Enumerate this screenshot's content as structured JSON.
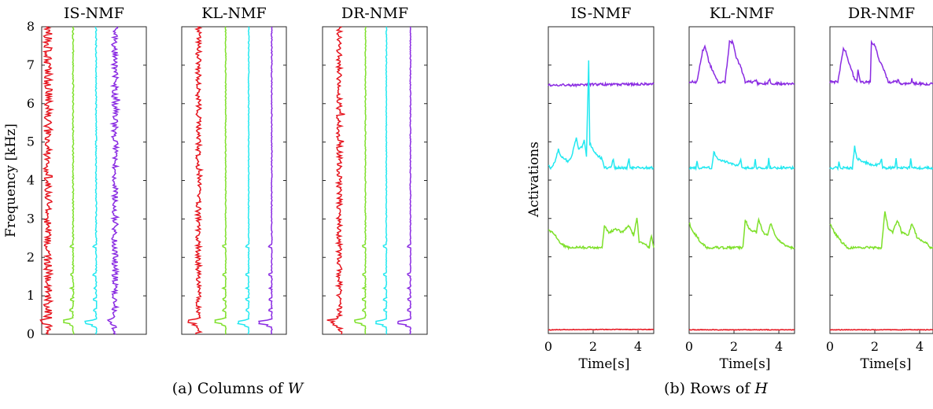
{
  "figure": {
    "caption_a": "(a) Columns of ",
    "caption_a_sym": "W",
    "caption_b": "(b) Rows of ",
    "caption_b_sym": "H"
  },
  "chart_data": [
    {
      "type": "line",
      "panel": "a",
      "title": "IS-NMF",
      "ylabel": "Frequency [kHz]",
      "ylim": [
        0,
        8
      ],
      "yticks": [
        0,
        1,
        2,
        3,
        4,
        5,
        6,
        7,
        8
      ],
      "series": [
        {
          "color": "#e6141e",
          "baseline": 0.06,
          "spike_at_khz": 0.33,
          "spike": 0.05,
          "noise": 0.04
        },
        {
          "color": "#7ee02a",
          "baseline": 0.3,
          "spike_at_khz": 0.33,
          "spike": 0.09,
          "noise": 0.006
        },
        {
          "color": "#22e8f0",
          "baseline": 0.52,
          "spike_at_khz": 0.3,
          "spike": 0.1,
          "noise": 0.006
        },
        {
          "color": "#8a2be2",
          "baseline": 0.7,
          "spike_at_khz": 0.33,
          "spike": 0.05,
          "noise": 0.03
        }
      ]
    },
    {
      "type": "line",
      "panel": "a",
      "title": "KL-NMF",
      "ylim": [
        0,
        8
      ],
      "series": [
        {
          "color": "#e6141e",
          "baseline": 0.16,
          "spike_at_khz": 0.33,
          "spike": 0.1,
          "noise": 0.025
        },
        {
          "color": "#7ee02a",
          "baseline": 0.42,
          "spike_at_khz": 0.33,
          "spike": 0.1,
          "noise": 0.004
        },
        {
          "color": "#22e8f0",
          "baseline": 0.64,
          "spike_at_khz": 0.3,
          "spike": 0.1,
          "noise": 0.004
        },
        {
          "color": "#8a2be2",
          "baseline": 0.86,
          "spike_at_khz": 0.3,
          "spike": 0.12,
          "noise": 0.004
        }
      ]
    },
    {
      "type": "line",
      "panel": "a",
      "title": "DR-NMF",
      "ylim": [
        0,
        8
      ],
      "series": [
        {
          "color": "#e6141e",
          "baseline": 0.16,
          "spike_at_khz": 0.33,
          "spike": 0.1,
          "noise": 0.025
        },
        {
          "color": "#7ee02a",
          "baseline": 0.41,
          "spike_at_khz": 0.33,
          "spike": 0.1,
          "noise": 0.004
        },
        {
          "color": "#22e8f0",
          "baseline": 0.61,
          "spike_at_khz": 0.3,
          "spike": 0.1,
          "noise": 0.004
        },
        {
          "color": "#8a2be2",
          "baseline": 0.84,
          "spike_at_khz": 0.3,
          "spike": 0.12,
          "noise": 0.004
        }
      ]
    },
    {
      "type": "line",
      "panel": "b",
      "title": "IS-NMF",
      "xlabel": "Time[s]",
      "ylabel": "Activations",
      "xlim": [
        0,
        4.7
      ],
      "xticks": [
        0,
        2,
        4
      ],
      "series": [
        {
          "color": "#8a2be2",
          "points": [
            [
              0,
              0.81
            ],
            [
              1.0,
              0.81
            ],
            [
              1.8,
              0.81
            ],
            [
              1.82,
              0.812
            ],
            [
              3.0,
              0.812
            ],
            [
              4.7,
              0.813
            ]
          ]
        },
        {
          "color": "#22e8f0",
          "points": [
            [
              0,
              0.55
            ],
            [
              0.1,
              0.54
            ],
            [
              0.3,
              0.56
            ],
            [
              0.45,
              0.6
            ],
            [
              0.55,
              0.58
            ],
            [
              0.7,
              0.57
            ],
            [
              0.9,
              0.56
            ],
            [
              1.05,
              0.58
            ],
            [
              1.25,
              0.64
            ],
            [
              1.35,
              0.6
            ],
            [
              1.5,
              0.61
            ],
            [
              1.6,
              0.63
            ],
            [
              1.7,
              0.58
            ],
            [
              1.8,
              0.89
            ],
            [
              1.85,
              0.62
            ],
            [
              2.0,
              0.6
            ],
            [
              2.2,
              0.58
            ],
            [
              2.4,
              0.57
            ],
            [
              2.5,
              0.54
            ],
            [
              2.8,
              0.54
            ],
            [
              2.9,
              0.57
            ],
            [
              2.95,
              0.54
            ],
            [
              3.5,
              0.54
            ],
            [
              3.6,
              0.57
            ],
            [
              3.65,
              0.54
            ],
            [
              4.7,
              0.54
            ]
          ]
        },
        {
          "color": "#7ee02a",
          "points": [
            [
              0,
              0.34
            ],
            [
              0.15,
              0.33
            ],
            [
              0.3,
              0.32
            ],
            [
              0.6,
              0.29
            ],
            [
              0.9,
              0.28
            ],
            [
              1.2,
              0.28
            ],
            [
              2.4,
              0.28
            ],
            [
              2.5,
              0.35
            ],
            [
              2.7,
              0.33
            ],
            [
              3.0,
              0.34
            ],
            [
              3.3,
              0.33
            ],
            [
              3.6,
              0.35
            ],
            [
              3.8,
              0.32
            ],
            [
              3.95,
              0.38
            ],
            [
              4.05,
              0.3
            ],
            [
              4.3,
              0.29
            ],
            [
              4.5,
              0.28
            ],
            [
              4.6,
              0.32
            ],
            [
              4.7,
              0.28
            ]
          ]
        },
        {
          "color": "#e6141e",
          "points": [
            [
              0,
              0.012
            ],
            [
              2.0,
              0.013
            ],
            [
              4.7,
              0.013
            ]
          ]
        }
      ]
    },
    {
      "type": "line",
      "panel": "b",
      "title": "KL-NMF",
      "xlabel": "Time[s]",
      "xlim": [
        0,
        4.7
      ],
      "xticks": [
        0,
        2,
        4
      ],
      "series": [
        {
          "color": "#8a2be2",
          "points": [
            [
              0,
              0.82
            ],
            [
              0.35,
              0.82
            ],
            [
              0.6,
              0.92
            ],
            [
              0.7,
              0.94
            ],
            [
              0.9,
              0.88
            ],
            [
              1.1,
              0.85
            ],
            [
              1.3,
              0.82
            ],
            [
              1.6,
              0.82
            ],
            [
              1.8,
              0.95
            ],
            [
              1.95,
              0.95
            ],
            [
              2.1,
              0.9
            ],
            [
              2.3,
              0.87
            ],
            [
              2.5,
              0.82
            ],
            [
              2.9,
              0.82
            ],
            [
              3.0,
              0.83
            ],
            [
              3.05,
              0.815
            ],
            [
              3.5,
              0.815
            ],
            [
              3.6,
              0.83
            ],
            [
              3.65,
              0.815
            ],
            [
              4.7,
              0.813
            ]
          ]
        },
        {
          "color": "#22e8f0",
          "points": [
            [
              0,
              0.54
            ],
            [
              0.3,
              0.54
            ],
            [
              0.35,
              0.56
            ],
            [
              0.4,
              0.54
            ],
            [
              1.0,
              0.54
            ],
            [
              1.1,
              0.59
            ],
            [
              1.3,
              0.57
            ],
            [
              1.6,
              0.56
            ],
            [
              2.0,
              0.55
            ],
            [
              2.2,
              0.55
            ],
            [
              2.3,
              0.57
            ],
            [
              2.35,
              0.54
            ],
            [
              2.9,
              0.54
            ],
            [
              2.95,
              0.57
            ],
            [
              3.0,
              0.54
            ],
            [
              3.5,
              0.54
            ],
            [
              3.55,
              0.57
            ],
            [
              3.6,
              0.54
            ],
            [
              4.7,
              0.54
            ]
          ]
        },
        {
          "color": "#7ee02a",
          "points": [
            [
              0,
              0.36
            ],
            [
              0.2,
              0.33
            ],
            [
              0.5,
              0.3
            ],
            [
              0.8,
              0.28
            ],
            [
              1.2,
              0.28
            ],
            [
              2.4,
              0.28
            ],
            [
              2.5,
              0.37
            ],
            [
              2.7,
              0.34
            ],
            [
              3.0,
              0.33
            ],
            [
              3.1,
              0.37
            ],
            [
              3.3,
              0.33
            ],
            [
              3.5,
              0.32
            ],
            [
              3.65,
              0.36
            ],
            [
              3.9,
              0.31
            ],
            [
              4.2,
              0.29
            ],
            [
              4.5,
              0.28
            ],
            [
              4.7,
              0.28
            ]
          ]
        },
        {
          "color": "#e6141e",
          "points": [
            [
              0,
              0.012
            ],
            [
              2.0,
              0.012
            ],
            [
              4.7,
              0.012
            ]
          ]
        }
      ]
    },
    {
      "type": "line",
      "panel": "b",
      "title": "DR-NMF",
      "xlabel": "Time[s]",
      "xlim": [
        0,
        4.7
      ],
      "xticks": [
        0,
        2,
        4
      ],
      "series": [
        {
          "color": "#8a2be2",
          "points": [
            [
              0,
              0.82
            ],
            [
              0.35,
              0.82
            ],
            [
              0.6,
              0.93
            ],
            [
              0.7,
              0.92
            ],
            [
              0.9,
              0.87
            ],
            [
              1.1,
              0.83
            ],
            [
              1.2,
              0.82
            ],
            [
              1.25,
              0.86
            ],
            [
              1.35,
              0.82
            ],
            [
              1.8,
              0.82
            ],
            [
              1.85,
              0.95
            ],
            [
              2.0,
              0.94
            ],
            [
              2.2,
              0.89
            ],
            [
              2.4,
              0.86
            ],
            [
              2.6,
              0.82
            ],
            [
              3.0,
              0.82
            ],
            [
              3.05,
              0.83
            ],
            [
              3.1,
              0.815
            ],
            [
              3.6,
              0.815
            ],
            [
              3.65,
              0.83
            ],
            [
              3.7,
              0.815
            ],
            [
              4.7,
              0.813
            ]
          ]
        },
        {
          "color": "#22e8f0",
          "points": [
            [
              0,
              0.54
            ],
            [
              0.35,
              0.54
            ],
            [
              0.4,
              0.56
            ],
            [
              0.45,
              0.54
            ],
            [
              1.0,
              0.54
            ],
            [
              1.1,
              0.61
            ],
            [
              1.2,
              0.57
            ],
            [
              1.5,
              0.56
            ],
            [
              1.9,
              0.55
            ],
            [
              2.2,
              0.55
            ],
            [
              2.3,
              0.57
            ],
            [
              2.35,
              0.54
            ],
            [
              2.9,
              0.54
            ],
            [
              2.95,
              0.57
            ],
            [
              3.0,
              0.54
            ],
            [
              3.55,
              0.54
            ],
            [
              3.6,
              0.57
            ],
            [
              3.65,
              0.54
            ],
            [
              4.7,
              0.54
            ]
          ]
        },
        {
          "color": "#7ee02a",
          "points": [
            [
              0,
              0.36
            ],
            [
              0.2,
              0.33
            ],
            [
              0.5,
              0.3
            ],
            [
              0.8,
              0.28
            ],
            [
              1.2,
              0.28
            ],
            [
              2.3,
              0.28
            ],
            [
              2.45,
              0.4
            ],
            [
              2.6,
              0.34
            ],
            [
              2.8,
              0.33
            ],
            [
              3.0,
              0.37
            ],
            [
              3.2,
              0.33
            ],
            [
              3.5,
              0.32
            ],
            [
              3.65,
              0.36
            ],
            [
              3.9,
              0.31
            ],
            [
              4.2,
              0.3
            ],
            [
              4.5,
              0.28
            ],
            [
              4.7,
              0.28
            ]
          ]
        },
        {
          "color": "#e6141e",
          "points": [
            [
              0,
              0.012
            ],
            [
              2.0,
              0.012
            ],
            [
              4.7,
              0.012
            ]
          ]
        }
      ]
    }
  ]
}
